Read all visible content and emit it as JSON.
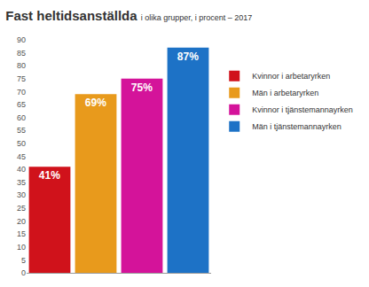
{
  "chart_data": {
    "type": "bar",
    "title": "Fast heltidsanställda",
    "subtitle": "i olika grupper, i procent – 2017",
    "categories": [
      "Kvinnor i arbetaryrken",
      "Män i arbetaryrken",
      "Kvinnor i tjänstemannayrken",
      "Män i tjänstemannayrken"
    ],
    "values": [
      41,
      69,
      75,
      87
    ],
    "value_labels": [
      "41%",
      "69%",
      "75%",
      "87%"
    ],
    "colors": [
      "#d0121b",
      "#e89a1c",
      "#d4139a",
      "#1d72c6"
    ],
    "ylim": [
      0,
      90
    ],
    "yticks": [
      0,
      5,
      10,
      15,
      20,
      25,
      30,
      35,
      40,
      45,
      50,
      55,
      60,
      65,
      70,
      75,
      80,
      85,
      90
    ],
    "grid": false,
    "legend": "right",
    "data_labels": true,
    "tick_labels": "y"
  }
}
